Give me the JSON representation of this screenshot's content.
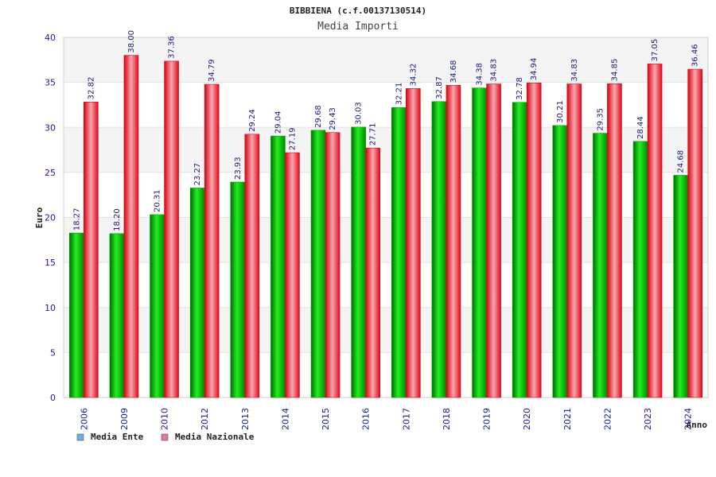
{
  "chart_data": {
    "type": "bar",
    "title": "BIBBIENA (c.f.00137130514)",
    "subtitle": "Media Importi",
    "xlabel": "Anno",
    "ylabel": "Euro",
    "ylim": [
      0,
      40
    ],
    "yticks": [
      0,
      5,
      10,
      15,
      20,
      25,
      30,
      35,
      40
    ],
    "grid": true,
    "legend_position": "bottom-left",
    "categories": [
      "2006",
      "2009",
      "2010",
      "2012",
      "2013",
      "2014",
      "2015",
      "2016",
      "2017",
      "2018",
      "2019",
      "2020",
      "2021",
      "2022",
      "2023",
      "2024"
    ],
    "series": [
      {
        "name": "Media Ente",
        "color": "#00b000",
        "legend_color": "#6aaeea",
        "values": [
          18.27,
          18.2,
          20.31,
          23.27,
          23.93,
          29.04,
          29.68,
          30.03,
          32.21,
          32.87,
          34.38,
          32.78,
          30.21,
          29.35,
          28.44,
          24.68
        ],
        "labels": [
          "18.27",
          "18.20",
          "20.31",
          "23.27",
          "23.93",
          "29.04",
          "29.68",
          "30.03",
          "32.21",
          "32.87",
          "34.38",
          "32.78",
          "30.21",
          "29.35",
          "28.44",
          "24.68"
        ]
      },
      {
        "name": "Media Nazionale",
        "color": "#e8101e",
        "legend_color": "#e07aa2",
        "values": [
          32.82,
          38.0,
          37.36,
          34.79,
          29.24,
          27.19,
          29.43,
          27.71,
          34.32,
          34.68,
          34.83,
          34.94,
          34.83,
          34.85,
          37.05,
          36.46
        ],
        "labels": [
          "32.82",
          "38.00",
          "37.36",
          "34.79",
          "29.24",
          "27.19",
          "29.43",
          "27.71",
          "34.32",
          "34.68",
          "34.83",
          "34.94",
          "34.83",
          "34.85",
          "37.05",
          "36.46"
        ]
      }
    ]
  }
}
